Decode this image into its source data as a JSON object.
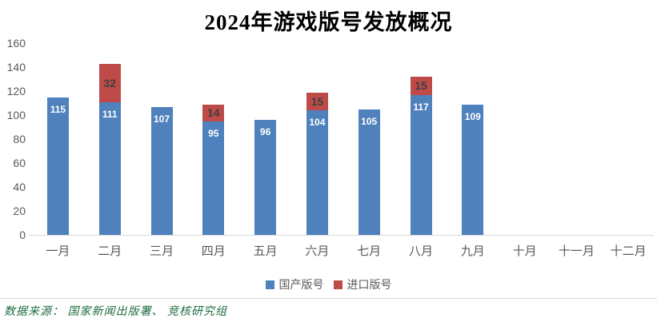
{
  "title": "2024年游戏版号发放概况",
  "source_note": "数据来源： 国家新闻出版署、 竞核研究组",
  "legend": {
    "domestic_label": "国产版号",
    "import_label": "进口版号"
  },
  "colors": {
    "domestic_bar": "#4f81bd",
    "import_bar": "#be4b48",
    "axis_text": "#595959",
    "baseline": "#d9d9d9",
    "label_on_domestic": "#ffffff",
    "label_on_import": "#3f3f3f",
    "source_text": "#1e6c41"
  },
  "chart_data": {
    "type": "bar",
    "stacked": true,
    "title": "2024年游戏版号发放概况",
    "categories": [
      "一月",
      "二月",
      "三月",
      "四月",
      "五月",
      "六月",
      "七月",
      "八月",
      "九月",
      "十月",
      "十一月",
      "十二月"
    ],
    "series": [
      {
        "name": "国产版号",
        "color": "#4f81bd",
        "values": [
          115,
          111,
          107,
          95,
          96,
          104,
          105,
          117,
          109,
          null,
          null,
          null
        ]
      },
      {
        "name": "进口版号",
        "color": "#be4b48",
        "values": [
          0,
          32,
          0,
          14,
          0,
          15,
          0,
          15,
          0,
          null,
          null,
          null
        ]
      }
    ],
    "totals": [
      115,
      143,
      107,
      109,
      96,
      119,
      105,
      132,
      109,
      null,
      null,
      null
    ],
    "xlabel": "",
    "ylabel": "",
    "ylim": [
      0,
      160
    ],
    "ytick_step": 20,
    "yticks": [
      0,
      20,
      40,
      60,
      80,
      100,
      120,
      140,
      160
    ],
    "grid": false,
    "data_labels": true,
    "legend_position": "bottom"
  }
}
